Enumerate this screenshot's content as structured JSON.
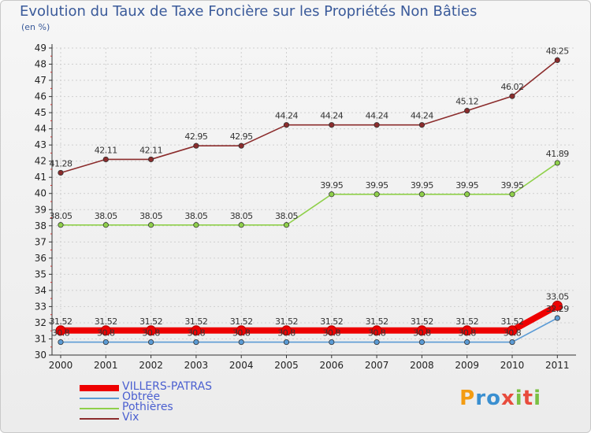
{
  "colors": {
    "title": "#3a5a9a",
    "axis": "#333333",
    "grid": "#cfcfcf"
  },
  "logo": {
    "letters": [
      "P",
      "r",
      "o",
      "x",
      "i",
      "t",
      "i"
    ],
    "colors": [
      "#f39c12",
      "#3a8fd0",
      "#3a8fd0",
      "#e84c3d",
      "#7ac043",
      "#e84c3d",
      "#7ac043"
    ]
  },
  "chart_data": {
    "type": "line",
    "title": "Evolution du Taux de Taxe Foncière sur les Propriétés Non Bâties",
    "subtitle": "(en %)",
    "x": [
      "2000",
      "2001",
      "2002",
      "2003",
      "2004",
      "2005",
      "2006",
      "2007",
      "2008",
      "2009",
      "2010",
      "2011"
    ],
    "ylim": [
      30,
      49
    ],
    "yticks": [
      30,
      31,
      32,
      33,
      34,
      35,
      36,
      37,
      38,
      39,
      40,
      41,
      42,
      43,
      44,
      45,
      46,
      47,
      48,
      49
    ],
    "grid": true,
    "legend_position": "bottom-left",
    "series": [
      {
        "name": "VILLERS-PATRAS",
        "color": "#ee0000",
        "values": [
          31.52,
          31.52,
          31.52,
          31.52,
          31.52,
          31.52,
          31.52,
          31.52,
          31.52,
          31.52,
          31.52,
          33.05
        ],
        "labels": [
          "31.52",
          "31.52",
          "31.52",
          "31.52",
          "31.52",
          "31.52",
          "31.52",
          "31.52",
          "31.52",
          "31.52",
          "31.52",
          "33.05"
        ]
      },
      {
        "name": "Obtrée",
        "color": "#5b9bd5",
        "values": [
          30.8,
          30.8,
          30.8,
          30.8,
          30.8,
          30.8,
          30.8,
          30.8,
          30.8,
          30.8,
          30.8,
          32.29
        ],
        "labels": [
          "30.8",
          "30.8",
          "30.8",
          "30.8",
          "30.8",
          "30.8",
          "30.8",
          "30.8",
          "30.8",
          "30.8",
          "30.8",
          "32.29"
        ]
      },
      {
        "name": "Pothières",
        "color": "#8fd04a",
        "values": [
          38.05,
          38.05,
          38.05,
          38.05,
          38.05,
          38.05,
          39.95,
          39.95,
          39.95,
          39.95,
          39.95,
          41.89
        ],
        "labels": [
          "38.05",
          "38.05",
          "38.05",
          "38.05",
          "38.05",
          "38.05",
          "39.95",
          "39.95",
          "39.95",
          "39.95",
          "39.95",
          "41.89"
        ]
      },
      {
        "name": "Vix",
        "color": "#8b2c2c",
        "values": [
          41.28,
          42.11,
          42.11,
          42.95,
          42.95,
          44.24,
          44.24,
          44.24,
          44.24,
          45.12,
          46.02,
          48.25
        ],
        "labels": [
          "41.28",
          "42.11",
          "42.11",
          "42.95",
          "42.95",
          "44.24",
          "44.24",
          "44.24",
          "44.24",
          "45.12",
          "46.02",
          "48.25"
        ]
      }
    ]
  }
}
